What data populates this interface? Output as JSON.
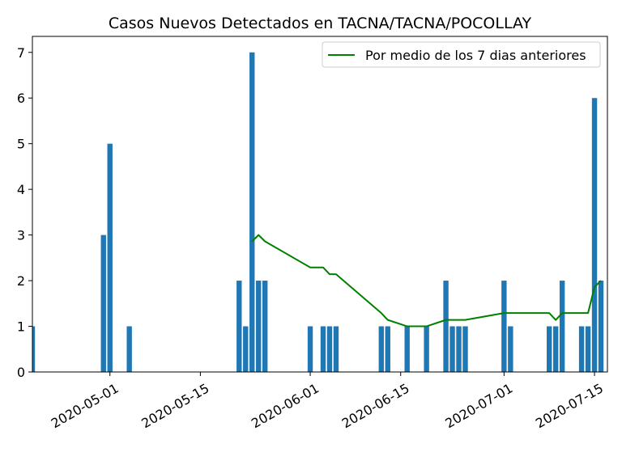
{
  "chart_data": {
    "type": "bar",
    "title": "Casos Nuevos Detectados en TACNA/TACNA/POCOLLAY",
    "xlabel": "",
    "ylabel": "",
    "x_range": [
      "2020-04-19",
      "2020-07-17"
    ],
    "ylim": [
      0,
      7.35
    ],
    "y_ticks": [
      0,
      1,
      2,
      3,
      4,
      5,
      6,
      7
    ],
    "x_ticks": [
      "2020-05-01",
      "2020-05-15",
      "2020-06-01",
      "2020-06-15",
      "2020-07-01",
      "2020-07-15"
    ],
    "grid": false,
    "legend": {
      "position": "upper right",
      "entries": [
        "Por medio de los 7 dias anteriores"
      ]
    },
    "colors": {
      "bars": "#1f77b4",
      "line": "#008000"
    },
    "series": [
      {
        "type": "bar",
        "dates": [
          "2020-04-19",
          "2020-04-30",
          "2020-05-01",
          "2020-05-04",
          "2020-05-21",
          "2020-05-22",
          "2020-05-23",
          "2020-05-24",
          "2020-05-25",
          "2020-06-01",
          "2020-06-03",
          "2020-06-04",
          "2020-06-05",
          "2020-06-12",
          "2020-06-13",
          "2020-06-16",
          "2020-06-19",
          "2020-06-22",
          "2020-06-23",
          "2020-06-24",
          "2020-06-25",
          "2020-07-01",
          "2020-07-02",
          "2020-07-08",
          "2020-07-09",
          "2020-07-10",
          "2020-07-13",
          "2020-07-14",
          "2020-07-15",
          "2020-07-16"
        ],
        "values": [
          1,
          3,
          5,
          1,
          2,
          1,
          7,
          2,
          2,
          1,
          1,
          1,
          1,
          1,
          1,
          1,
          1,
          2,
          1,
          1,
          1,
          2,
          1,
          1,
          1,
          2,
          1,
          1,
          6,
          2
        ]
      },
      {
        "name": "Por medio de los 7 dias anteriores",
        "type": "line",
        "dates": [
          "2020-05-23",
          "2020-05-24",
          "2020-05-25",
          "2020-06-01",
          "2020-06-03",
          "2020-06-04",
          "2020-06-05",
          "2020-06-12",
          "2020-06-13",
          "2020-06-16",
          "2020-06-19",
          "2020-06-22",
          "2020-06-25",
          "2020-07-01",
          "2020-07-08",
          "2020-07-09",
          "2020-07-10",
          "2020-07-14",
          "2020-07-15",
          "2020-07-16"
        ],
        "values": [
          2.86,
          3.0,
          2.86,
          2.29,
          2.29,
          2.14,
          2.14,
          1.29,
          1.14,
          1.0,
          1.0,
          1.14,
          1.14,
          1.29,
          1.29,
          1.14,
          1.29,
          1.29,
          1.86,
          2.0
        ]
      }
    ]
  }
}
